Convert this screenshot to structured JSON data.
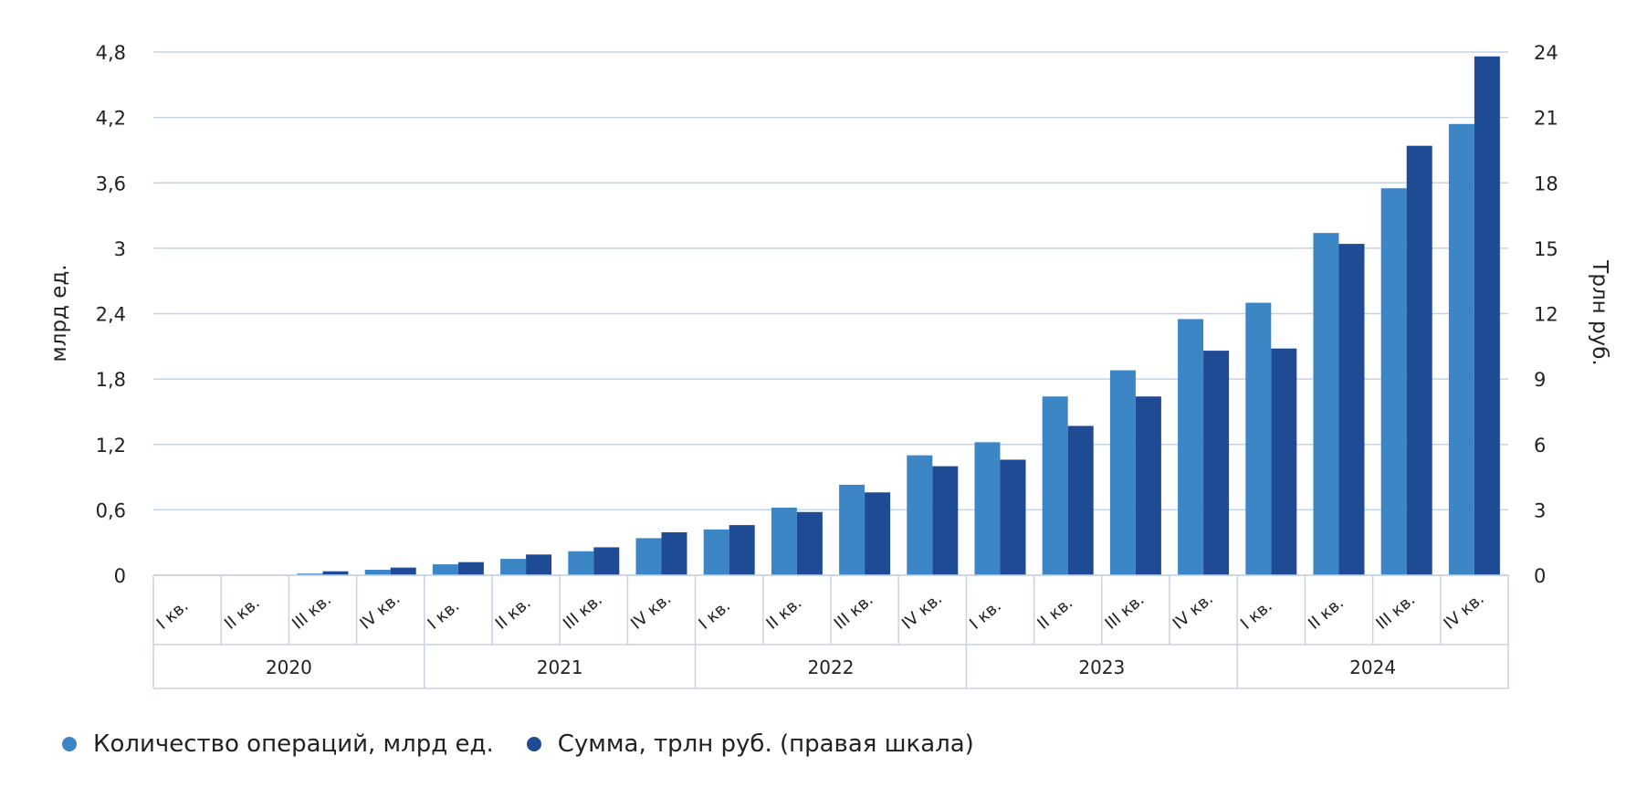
{
  "chart_data": {
    "type": "bar",
    "title": "",
    "colors": {
      "count": "#3d86c6",
      "sum": "#1f4a94",
      "grid": "#c5d3e3"
    },
    "years": [
      "2020",
      "2021",
      "2022",
      "2023",
      "2024"
    ],
    "quarters": [
      "I кв.",
      "II кв.",
      "III кв.",
      "IV кв."
    ],
    "categories": [
      "I кв.",
      "II кв.",
      "III кв.",
      "IV кв.",
      "I кв.",
      "II кв.",
      "III кв.",
      "IV кв.",
      "I кв.",
      "II кв.",
      "III кв.",
      "IV кв.",
      "I кв.",
      "II кв.",
      "III кв.",
      "IV кв.",
      "I кв.",
      "II кв.",
      "III кв.",
      "IV кв."
    ],
    "y_left": {
      "label": "млрд ед.",
      "min": 0,
      "max": 4.8,
      "ticks": [
        "0",
        "0,6",
        "1,2",
        "1,8",
        "2,4",
        "3",
        "3,6",
        "4,2",
        "4,8"
      ]
    },
    "y_right": {
      "label": "Трлн руб.",
      "min": 0,
      "max": 24,
      "ticks": [
        "0",
        "3",
        "6",
        "9",
        "12",
        "15",
        "18",
        "21",
        "24"
      ]
    },
    "series": [
      {
        "name": "Количество операций, млрд ед.",
        "axis": "left",
        "values": [
          0,
          0,
          0.015,
          0.05,
          0.1,
          0.15,
          0.22,
          0.34,
          0.42,
          0.62,
          0.83,
          1.1,
          1.22,
          1.64,
          1.88,
          2.35,
          2.5,
          3.14,
          3.55,
          4.14
        ]
      },
      {
        "name": "Сумма, трлн руб. (правая шкала)",
        "axis": "right",
        "values": [
          0,
          0,
          0.18,
          0.35,
          0.6,
          0.95,
          1.28,
          1.97,
          2.3,
          2.9,
          3.8,
          5.0,
          5.3,
          6.85,
          8.2,
          10.3,
          10.4,
          15.2,
          19.7,
          23.8
        ]
      }
    ],
    "grid": true,
    "legend": "bottom-left"
  }
}
